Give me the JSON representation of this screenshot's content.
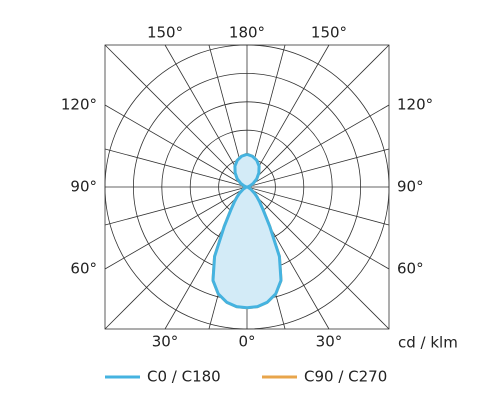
{
  "chart_data": {
    "type": "polar",
    "unit_label": "cd / klm",
    "x": [
      0,
      5,
      10,
      15,
      20,
      25,
      30,
      35,
      40,
      45,
      50,
      60,
      70,
      80,
      90,
      100,
      110,
      120,
      130,
      140,
      150,
      160,
      170,
      180
    ],
    "series": [
      {
        "name": "C90 / C270",
        "color": "#e8a54b",
        "values": [
          425,
          423,
          412,
          390,
          350,
          270,
          160,
          100,
          70,
          50,
          35,
          15,
          5,
          2,
          0,
          3,
          10,
          25,
          45,
          65,
          85,
          100,
          110,
          115
        ]
      },
      {
        "name": "C0 / C180",
        "color": "#45b3e0",
        "fill": "#d3ebf7",
        "values": [
          425,
          423,
          412,
          390,
          350,
          270,
          160,
          100,
          70,
          50,
          35,
          15,
          5,
          2,
          0,
          3,
          10,
          25,
          45,
          65,
          85,
          100,
          110,
          115
        ]
      }
    ],
    "legend_order": [
      "C0 / C180",
      "C90 / C270"
    ],
    "rlim": [
      0,
      500
    ],
    "rticks": [
      100,
      200,
      300,
      400,
      500
    ],
    "angle_grid_step": 15,
    "angle_ticks": [
      {
        "value": 0,
        "label": "0°"
      },
      {
        "value": 30,
        "label": "30°"
      },
      {
        "value": 60,
        "label": "60°"
      },
      {
        "value": 90,
        "label": "90°"
      },
      {
        "value": 120,
        "label": "120°"
      },
      {
        "value": 150,
        "label": "150°"
      },
      {
        "value": 180,
        "label": "180°"
      }
    ]
  }
}
